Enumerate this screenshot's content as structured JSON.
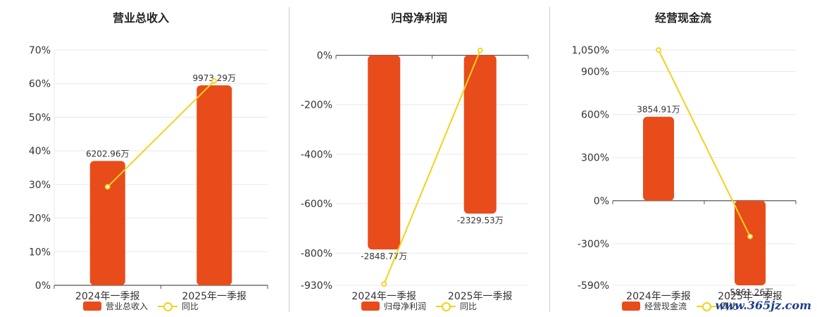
{
  "colors": {
    "bar": "#e84c1b",
    "line": "#f2d21b",
    "axis": "#555555",
    "grid": "#e8e8e8"
  },
  "watermark": "www.365jz.com",
  "chart_data": [
    {
      "type": "bar",
      "title": "营业总收入",
      "categories": [
        "2024年一季报",
        "2025年一季报"
      ],
      "series": [
        {
          "name": "营业总收入",
          "kind": "bar",
          "labels": [
            "6202.96万",
            "9973.29万"
          ],
          "values": [
            37,
            59.5
          ]
        },
        {
          "name": "同比",
          "kind": "line",
          "values": [
            29.3,
            60.8
          ]
        }
      ],
      "y_ticks": [
        "70%",
        "60%",
        "50%",
        "40%",
        "30%",
        "20%",
        "10%",
        "0%"
      ],
      "ylim": [
        0,
        70
      ],
      "grid": true,
      "legend": "bottom"
    },
    {
      "type": "bar",
      "title": "归母净利润",
      "categories": [
        "2024年一季报",
        "2025年一季报"
      ],
      "series": [
        {
          "name": "归母净利润",
          "kind": "bar",
          "labels": [
            "-2848.77万",
            "-2329.53万"
          ],
          "values": [
            -785,
            -640
          ]
        },
        {
          "name": "同比",
          "kind": "line",
          "values": [
            -925,
            20
          ]
        }
      ],
      "y_ticks": [
        "0%",
        "-200%",
        "-400%",
        "-600%",
        "-800%",
        "-930%"
      ],
      "ylim": [
        -930,
        30
      ],
      "grid": true,
      "legend": "bottom"
    },
    {
      "type": "bar",
      "title": "经营现金流",
      "categories": [
        "2024年一季报",
        "2025年一季报"
      ],
      "series": [
        {
          "name": "经营现金流",
          "kind": "bar",
          "labels": [
            "3854.91万",
            "-5861.26万"
          ],
          "values": [
            585,
            -590
          ]
        },
        {
          "name": "同比",
          "kind": "line",
          "values": [
            1050,
            -250
          ]
        }
      ],
      "y_ticks": [
        "1,050%",
        "900%",
        "600%",
        "300%",
        "0%",
        "-300%",
        "-590%"
      ],
      "ylim": [
        -590,
        1050
      ],
      "grid": true,
      "legend": "bottom"
    }
  ]
}
